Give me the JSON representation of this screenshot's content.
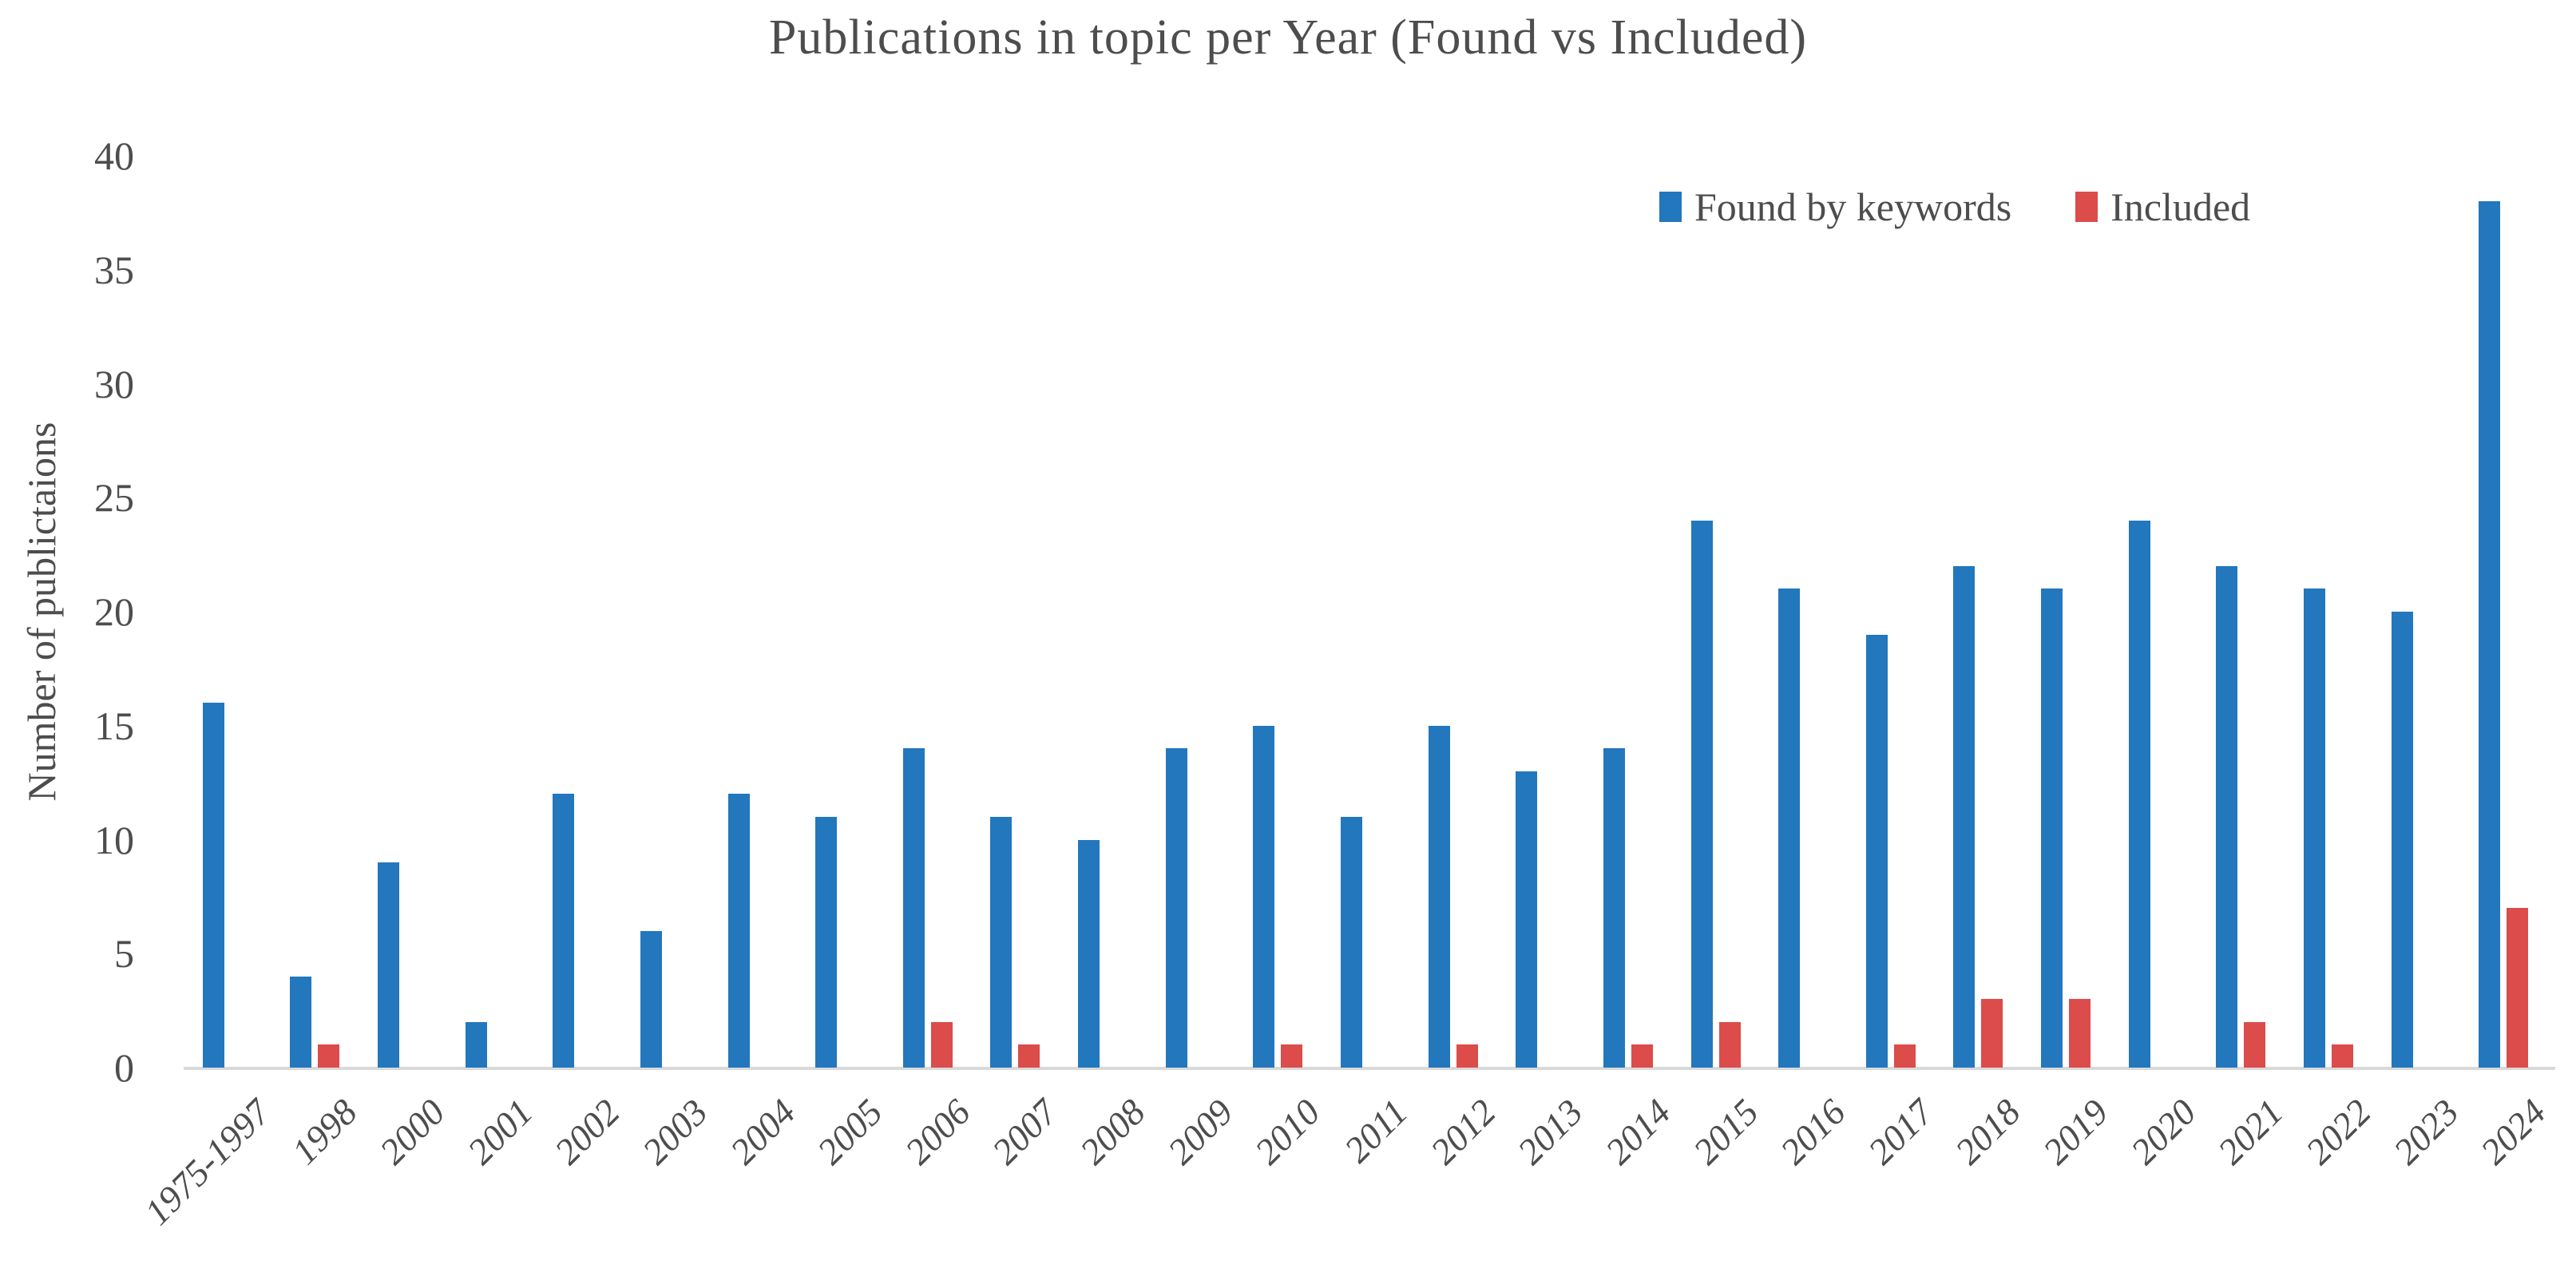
{
  "chart_data": {
    "type": "bar",
    "title": "Publications in topic per Year (Found vs Included)",
    "xlabel": "",
    "ylabel": "Number of publictaions",
    "ylim": [
      0,
      40
    ],
    "yticks": [
      0,
      5,
      10,
      15,
      20,
      25,
      30,
      35,
      40
    ],
    "grid": false,
    "legend_position": "top-right-inside",
    "categories": [
      "1975-1997",
      "1998",
      "2000",
      "2001",
      "2002",
      "2003",
      "2004",
      "2005",
      "2006",
      "2007",
      "2008",
      "2009",
      "2010",
      "2011",
      "2012",
      "2013",
      "2014",
      "2015",
      "2016",
      "2017",
      "2018",
      "2019",
      "2020",
      "2021",
      "2022",
      "2023",
      "2024"
    ],
    "series": [
      {
        "name": "Found by keywords",
        "color": "#2377BD",
        "values": [
          16,
          4,
          9,
          2,
          12,
          6,
          12,
          11,
          14,
          11,
          10,
          14,
          15,
          11,
          15,
          13,
          14,
          24,
          21,
          19,
          22,
          21,
          24,
          22,
          21,
          20,
          38
        ]
      },
      {
        "name": "Included",
        "color": "#DB4C4A",
        "values": [
          0,
          1,
          0,
          0,
          0,
          0,
          0,
          0,
          2,
          1,
          0,
          0,
          1,
          0,
          1,
          0,
          1,
          2,
          0,
          1,
          3,
          3,
          0,
          2,
          1,
          0,
          7
        ]
      }
    ]
  },
  "colors": {
    "text": "#4D4D4D",
    "axis_line": "#D9D9D9",
    "background": "#FFFFFF"
  }
}
